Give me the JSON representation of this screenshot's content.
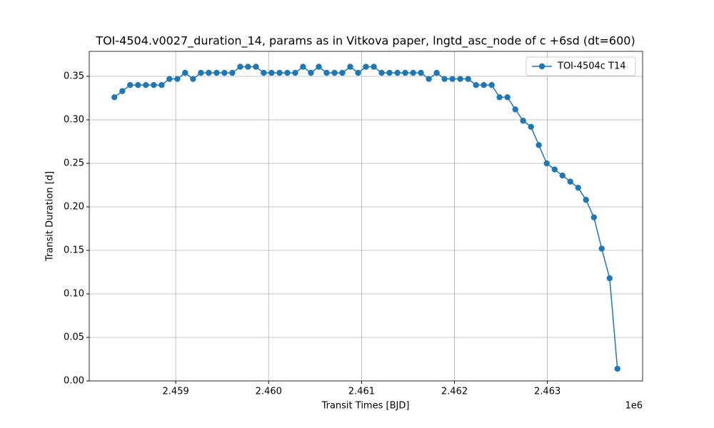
{
  "chart_data": {
    "type": "line",
    "title": "TOI-4504.v0027_duration_14, params as in Vitkova paper, lngtd_asc_node of c +6sd (dt=600)",
    "x_label": "Transit Times [BJD]",
    "y_label": "Transit Duration [d]",
    "x_offset_label": "1e6",
    "x": [
      2458340,
      2458425,
      2458509,
      2458594,
      2458678,
      2458763,
      2458848,
      2458932,
      2459017,
      2459101,
      2459186,
      2459271,
      2459355,
      2459440,
      2459524,
      2459609,
      2459694,
      2459778,
      2459863,
      2459947,
      2460032,
      2460117,
      2460201,
      2460286,
      2460370,
      2460455,
      2460540,
      2460624,
      2460709,
      2460793,
      2460878,
      2460963,
      2461047,
      2461132,
      2461216,
      2461301,
      2461386,
      2461470,
      2461555,
      2461639,
      2461724,
      2461809,
      2461893,
      2461978,
      2462062,
      2462147,
      2462232,
      2462316,
      2462401,
      2462485,
      2462570,
      2462655,
      2462739,
      2462824,
      2462908,
      2462993,
      2463078,
      2463162,
      2463247,
      2463331,
      2463416,
      2463501,
      2463585,
      2463670,
      2463754
    ],
    "series": [
      {
        "name": "TOI-4504c T14",
        "color": "#1f77b4",
        "values": [
          0.326,
          0.333,
          0.34,
          0.34,
          0.34,
          0.34,
          0.34,
          0.347,
          0.347,
          0.354,
          0.347,
          0.354,
          0.354,
          0.354,
          0.354,
          0.354,
          0.361,
          0.361,
          0.361,
          0.354,
          0.354,
          0.354,
          0.354,
          0.354,
          0.361,
          0.354,
          0.361,
          0.354,
          0.354,
          0.354,
          0.361,
          0.354,
          0.361,
          0.361,
          0.354,
          0.354,
          0.354,
          0.354,
          0.354,
          0.354,
          0.347,
          0.354,
          0.347,
          0.347,
          0.347,
          0.347,
          0.34,
          0.34,
          0.34,
          0.326,
          0.326,
          0.312,
          0.299,
          0.292,
          0.271,
          0.25,
          0.243,
          0.236,
          0.229,
          0.222,
          0.208,
          0.188,
          0.152,
          0.118,
          0.014
        ]
      }
    ],
    "xlim": [
      2458069,
      2464025
    ],
    "xticks": [
      {
        "value": 2459000,
        "label": "2.459"
      },
      {
        "value": 2460000,
        "label": "2.460"
      },
      {
        "value": 2461000,
        "label": "2.461"
      },
      {
        "value": 2462000,
        "label": "2.462"
      },
      {
        "value": 2463000,
        "label": "2.463"
      }
    ],
    "ylim": [
      0,
      0.3787
    ],
    "yticks": [
      {
        "value": 0,
        "label": "0.00"
      },
      {
        "value": 0.05,
        "label": "0.05"
      },
      {
        "value": 0.1,
        "label": "0.10"
      },
      {
        "value": 0.15,
        "label": "0.15"
      },
      {
        "value": 0.2,
        "label": "0.20"
      },
      {
        "value": 0.25,
        "label": "0.25"
      },
      {
        "value": 0.3,
        "label": "0.30"
      },
      {
        "value": 0.35,
        "label": "0.35"
      }
    ],
    "grid": true,
    "legend": "upper right"
  }
}
